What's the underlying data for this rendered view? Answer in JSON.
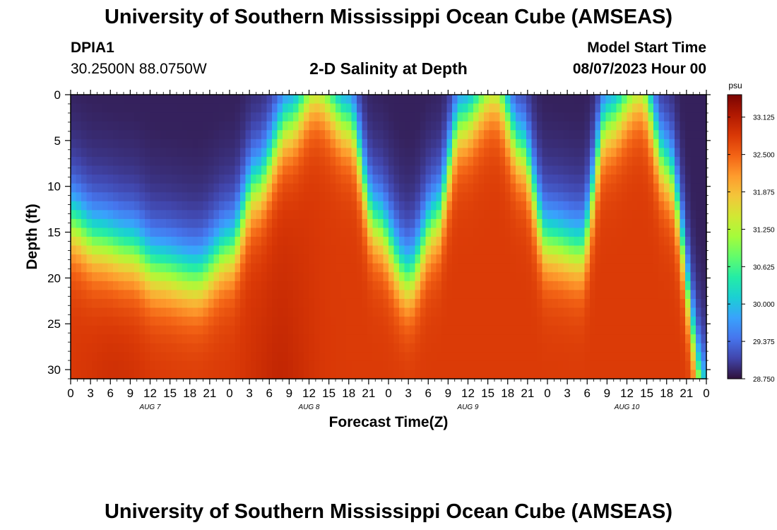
{
  "page": {
    "title": "University of Southern Mississippi Ocean Cube (AMSEAS)",
    "footer_title": "University of Southern Mississippi Ocean Cube (AMSEAS)"
  },
  "station": {
    "id": "DPIA1",
    "coords": "30.2500N  88.0750W"
  },
  "model": {
    "label": "Model Start Time",
    "start": "08/07/2023 Hour 00"
  },
  "chart_data": {
    "type": "heatmap",
    "title": "2-D Salinity at Depth",
    "xlabel": "Forecast Time(Z)",
    "ylabel": "Depth (ft)",
    "x_range_hours": [
      0,
      96
    ],
    "ylim": [
      0,
      31
    ],
    "x_ticks": [
      "0",
      "3",
      "6",
      "9",
      "12",
      "15",
      "18",
      "21",
      "0",
      "3",
      "6",
      "9",
      "12",
      "15",
      "18",
      "21",
      "0",
      "3",
      "6",
      "9",
      "12",
      "15",
      "18",
      "21",
      "0",
      "3",
      "6",
      "9",
      "12",
      "15",
      "18",
      "21",
      "0"
    ],
    "y_ticks": [
      "0",
      "5",
      "10",
      "15",
      "20",
      "25",
      "30"
    ],
    "y_tick_values": [
      0,
      5,
      10,
      15,
      20,
      25,
      30
    ],
    "day_labels": [
      {
        "label": "AUG 7",
        "hour": 12
      },
      {
        "label": "AUG 8",
        "hour": 36
      },
      {
        "label": "AUG 9",
        "hour": 60
      },
      {
        "label": "AUG 10",
        "hour": 84
      }
    ],
    "colorbar": {
      "unit": "psu",
      "min": 28.75,
      "max": 33.5,
      "ticks": [
        "33.125",
        "32.500",
        "31.875",
        "31.250",
        "30.625",
        "30.000",
        "29.375",
        "28.750"
      ],
      "tick_values": [
        33.125,
        32.5,
        31.875,
        31.25,
        30.625,
        30.0,
        29.375,
        28.75
      ]
    },
    "interface_depth_ft": {
      "hours": [
        0,
        4,
        9,
        13,
        19,
        24,
        28,
        33,
        37,
        42,
        46,
        51,
        55,
        59,
        64,
        68,
        72,
        77,
        81,
        86,
        90,
        96
      ],
      "depth": [
        14,
        16,
        17,
        19,
        20,
        17,
        10,
        3,
        -1,
        3,
        14,
        20,
        14,
        3,
        -1,
        6,
        16,
        17,
        3,
        -1,
        8,
        33
      ]
    },
    "surface_salinity_psu": 29.0,
    "bottom_salinity_psu": 32.8
  },
  "colors": {
    "colormap": [
      "#30123b",
      "#4145ab",
      "#4675ed",
      "#39a2fc",
      "#1bcfd4",
      "#24eca6",
      "#61fc6c",
      "#a4fc3b",
      "#d1e834",
      "#f3c63a",
      "#fe9b2d",
      "#f36315",
      "#d93806",
      "#b11901",
      "#7a0402"
    ]
  }
}
